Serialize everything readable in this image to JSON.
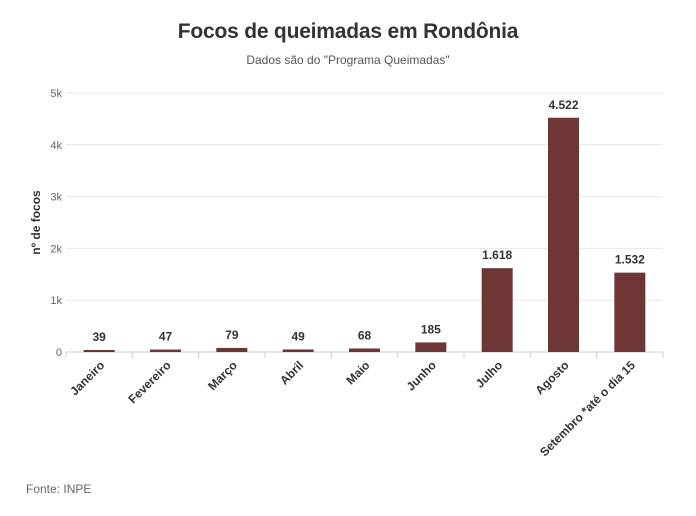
{
  "chart_data": {
    "type": "bar",
    "title": "Focos de queimadas em Rondônia",
    "subtitle": "Dados são do \"Programa Queimadas\"",
    "ylabel": "nº de focos",
    "xlabel": "",
    "categories": [
      "Janeiro",
      "Fevereiro",
      "Março",
      "Abril",
      "Maio",
      "Junho",
      "Julho",
      "Agosto",
      "Setembro *até o dia 15"
    ],
    "values": [
      39,
      47,
      79,
      49,
      68,
      185,
      1618,
      4522,
      1532
    ],
    "data_labels": [
      "39",
      "47",
      "79",
      "49",
      "68",
      "185",
      "1.618",
      "4.522",
      "1.532"
    ],
    "ylim": [
      0,
      5000
    ],
    "yticks": [
      0,
      1000,
      2000,
      3000,
      4000,
      5000
    ],
    "ytick_labels": [
      "0",
      "1k",
      "2k",
      "3k",
      "4k",
      "5k"
    ],
    "grid": true,
    "legend": "none",
    "bar_color": "#6d3533"
  },
  "source": "Fonte: INPE"
}
